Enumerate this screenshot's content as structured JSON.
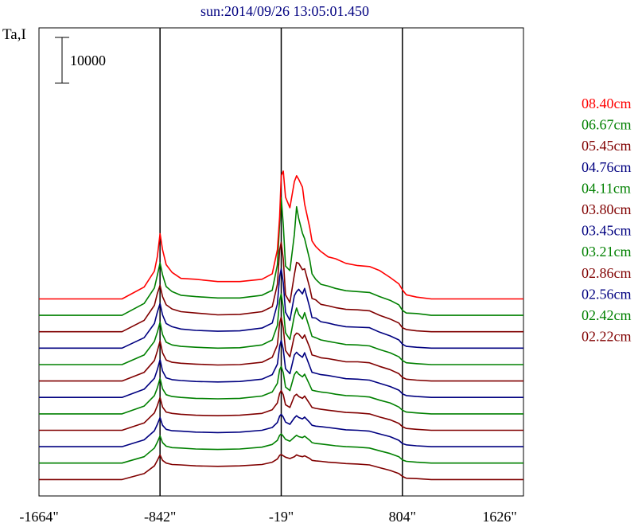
{
  "chart_data": {
    "type": "line",
    "title": "sun:2014/09/26 13:05:01.450",
    "ylabel": "Ta,I",
    "scale_bar_label": "10000",
    "x_ticks": [
      "-1664\"",
      "-842\"",
      "-19\"",
      "804\"",
      "1626\""
    ],
    "x_tick_values": [
      -1664,
      -842,
      -19,
      804,
      1626
    ],
    "xlim": [
      -1664,
      1626
    ],
    "vlines": [
      -842,
      -19,
      804
    ],
    "y_scale_bar_value": 10000,
    "grid": false,
    "legend_position": "right",
    "x_profile": [
      -1664,
      -1400,
      -1100,
      -950,
      -880,
      -860,
      -842,
      -825,
      -800,
      -760,
      -700,
      -600,
      -450,
      -300,
      -150,
      -80,
      -45,
      -30,
      -19,
      -5,
      10,
      40,
      70,
      85,
      100,
      125,
      140,
      175,
      190,
      215,
      250,
      300,
      350,
      420,
      500,
      580,
      650,
      720,
      780,
      804,
      830,
      900,
      1000,
      1150,
      1300,
      1450,
      1626
    ],
    "series": [
      {
        "name": "08.40cm",
        "color": "#ff0000",
        "offset": 43200,
        "values": [
          0,
          0,
          0,
          2600,
          6100,
          9300,
          14300,
          10800,
          7500,
          5800,
          4500,
          4300,
          3800,
          3800,
          4300,
          5500,
          10800,
          18000,
          27000,
          28000,
          22300,
          20000,
          25700,
          27000,
          26200,
          24500,
          20800,
          15600,
          12700,
          11500,
          10400,
          9200,
          8800,
          7800,
          7300,
          7100,
          6200,
          4700,
          3300,
          2000,
          900,
          400,
          0,
          0,
          0,
          0,
          0
        ]
      },
      {
        "name": "06.67cm",
        "color": "#008000",
        "offset": 39600,
        "values": [
          0,
          0,
          0,
          2600,
          6000,
          8800,
          11500,
          8900,
          6300,
          5200,
          4400,
          4100,
          3800,
          3800,
          4400,
          5500,
          11100,
          20200,
          25800,
          19800,
          10800,
          9800,
          17700,
          23800,
          21200,
          18000,
          16800,
          12100,
          9100,
          7900,
          6800,
          6400,
          5900,
          5400,
          5200,
          5000,
          4100,
          3300,
          2300,
          1100,
          500,
          400,
          0,
          0,
          0,
          0,
          0
        ]
      },
      {
        "name": "05.45cm",
        "color": "#800000",
        "offset": 36000,
        "values": [
          0,
          0,
          0,
          2500,
          5800,
          8400,
          10200,
          7700,
          5900,
          5000,
          4400,
          4100,
          3700,
          3800,
          4400,
          5500,
          10400,
          17900,
          19600,
          15900,
          8100,
          6400,
          12500,
          15200,
          15000,
          13600,
          13800,
          9600,
          7300,
          7000,
          6000,
          5700,
          5300,
          4900,
          4800,
          4600,
          3600,
          2800,
          1900,
          900,
          500,
          200,
          0,
          0,
          0,
          0,
          0
        ]
      },
      {
        "name": "04.76cm",
        "color": "#000080",
        "offset": 32400,
        "values": [
          0,
          0,
          0,
          2300,
          5400,
          7900,
          9800,
          7300,
          5400,
          4700,
          4200,
          3900,
          3700,
          3800,
          4400,
          5500,
          9700,
          15700,
          17400,
          14300,
          7900,
          6100,
          11500,
          12400,
          12900,
          11900,
          13100,
          8900,
          6700,
          6600,
          5800,
          5500,
          5100,
          4700,
          4600,
          4500,
          3500,
          2700,
          1800,
          900,
          400,
          200,
          0,
          0,
          0,
          0,
          0
        ]
      },
      {
        "name": "04.11cm",
        "color": "#008000",
        "offset": 28800,
        "values": [
          0,
          0,
          0,
          2100,
          5100,
          7100,
          9300,
          6600,
          4900,
          4300,
          4000,
          3800,
          3600,
          3700,
          4300,
          5400,
          8600,
          14100,
          15500,
          12500,
          7000,
          5500,
          10700,
          12400,
          11000,
          10000,
          11400,
          7800,
          6200,
          5900,
          5400,
          5100,
          4800,
          4400,
          4300,
          4100,
          3300,
          2600,
          1700,
          900,
          400,
          200,
          0,
          0,
          0,
          0,
          0
        ]
      },
      {
        "name": "03.80cm",
        "color": "#800000",
        "offset": 25200,
        "values": [
          0,
          0,
          0,
          1900,
          4500,
          6600,
          8800,
          6200,
          4600,
          4100,
          3900,
          3700,
          3500,
          3600,
          4100,
          5200,
          7900,
          12800,
          14000,
          11600,
          6700,
          5300,
          9900,
          10500,
          10300,
          9300,
          10100,
          7300,
          5700,
          5500,
          5100,
          4900,
          4600,
          4200,
          4200,
          4000,
          3200,
          2500,
          1600,
          800,
          400,
          200,
          0,
          0,
          0,
          0,
          0
        ]
      },
      {
        "name": "03.45cm",
        "color": "#000080",
        "offset": 21600,
        "values": [
          0,
          0,
          0,
          1800,
          4200,
          6100,
          8300,
          5800,
          4300,
          3900,
          3700,
          3500,
          3400,
          3500,
          4000,
          5000,
          7300,
          11200,
          12500,
          10500,
          6300,
          5200,
          9300,
          9900,
          9400,
          8800,
          9800,
          6800,
          5500,
          5300,
          5000,
          4800,
          4500,
          4100,
          4000,
          3800,
          3100,
          2400,
          1600,
          800,
          400,
          200,
          0,
          0,
          0,
          0,
          0
        ]
      },
      {
        "name": "03.21cm",
        "color": "#008000",
        "offset": 18000,
        "values": [
          0,
          0,
          0,
          1700,
          4000,
          5700,
          7800,
          5500,
          4200,
          3800,
          3600,
          3400,
          3300,
          3400,
          3900,
          4800,
          6700,
          9700,
          10400,
          9000,
          5900,
          5100,
          8600,
          9300,
          8700,
          8100,
          8700,
          6300,
          5200,
          5000,
          4800,
          4600,
          4300,
          4000,
          3900,
          3700,
          3000,
          2400,
          1500,
          800,
          400,
          200,
          0,
          0,
          0,
          0,
          0
        ]
      },
      {
        "name": "02.86cm",
        "color": "#800000",
        "offset": 14400,
        "values": [
          0,
          0,
          0,
          1600,
          3800,
          5400,
          7200,
          5100,
          4000,
          3700,
          3500,
          3300,
          3200,
          3300,
          3700,
          4500,
          6000,
          8100,
          8700,
          7800,
          5600,
          5000,
          7500,
          7900,
          7400,
          7000,
          7500,
          5800,
          5000,
          4800,
          4600,
          4400,
          4200,
          3900,
          3800,
          3600,
          2900,
          2300,
          1500,
          800,
          400,
          200,
          0,
          0,
          0,
          0,
          0
        ]
      },
      {
        "name": "02.56cm",
        "color": "#000080",
        "offset": 10800,
        "values": [
          0,
          0,
          0,
          1500,
          3500,
          4900,
          6400,
          4700,
          3800,
          3500,
          3400,
          3200,
          3100,
          3200,
          3600,
          4200,
          5300,
          6700,
          7100,
          6500,
          5400,
          4900,
          6300,
          6800,
          6400,
          6100,
          6500,
          5300,
          4700,
          4500,
          4400,
          4200,
          4000,
          3700,
          3600,
          3400,
          2800,
          2200,
          1400,
          700,
          400,
          200,
          0,
          0,
          0,
          0,
          0
        ]
      },
      {
        "name": "02.42cm",
        "color": "#008000",
        "offset": 7200,
        "values": [
          0,
          0,
          0,
          1400,
          3300,
          4600,
          6000,
          4500,
          3700,
          3400,
          3300,
          3100,
          3000,
          3100,
          3500,
          4100,
          5000,
          6100,
          6400,
          5900,
          5200,
          4800,
          5700,
          6100,
          5800,
          5600,
          5900,
          5000,
          4500,
          4300,
          4200,
          4000,
          3800,
          3600,
          3500,
          3300,
          2700,
          2100,
          1400,
          700,
          400,
          200,
          0,
          0,
          0,
          0,
          0
        ]
      },
      {
        "name": "02.22cm",
        "color": "#800000",
        "offset": 3600,
        "values": [
          0,
          0,
          0,
          1300,
          3000,
          4200,
          5400,
          4200,
          3600,
          3300,
          3200,
          3000,
          2900,
          3000,
          3300,
          3800,
          4500,
          5300,
          5500,
          5200,
          4900,
          4600,
          5000,
          5400,
          5200,
          5000,
          5200,
          4600,
          4200,
          4100,
          4000,
          3800,
          3700,
          3500,
          3400,
          3200,
          2600,
          2000,
          1300,
          700,
          300,
          200,
          0,
          0,
          0,
          0,
          0
        ]
      }
    ]
  }
}
